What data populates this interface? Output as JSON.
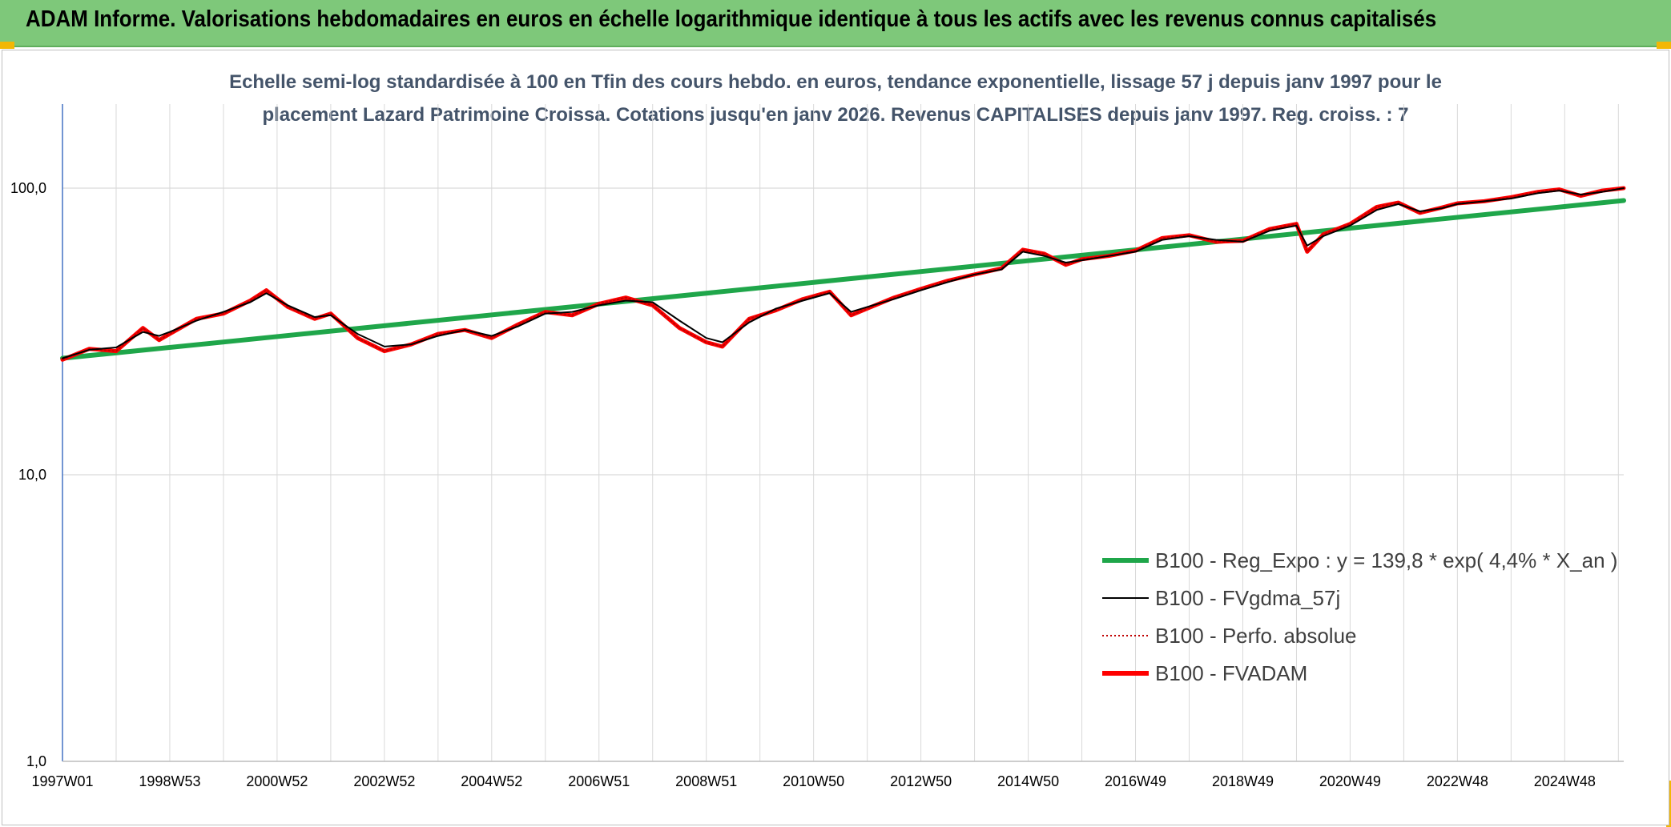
{
  "header": {
    "title": "ADAM Informe. Valorisations hebdomadaires en euros en échelle logarithmique identique à tous les actifs avec les revenus connus capitalisés"
  },
  "colors": {
    "title_bar": "#7ec87a",
    "subtitle_text": "#44546a",
    "trend": "#1fa64a",
    "smoothed": "#000000",
    "absolute": "#c00000",
    "fvadam": "#ff0000",
    "gridlines": "#d9d9d9",
    "corner_marks": "#f2b705"
  },
  "chart_data": {
    "type": "line",
    "subtitle_lines": [
      "Echelle semi-log standardisée à 100 en Tfin des cours hebdo. en euros, tendance exponentielle, lissage 57 j depuis janv 1997 pour le",
      "placement Lazard Patrimoine Croissa. Cotations jusqu'en janv 2026. Revenus CAPITALISES depuis janv 1997. Reg. croiss. : 7"
    ],
    "y_scale": "log",
    "ylim": [
      1,
      200
    ],
    "y_ticks": [
      {
        "value": 100,
        "label": "100,0"
      },
      {
        "value": 10,
        "label": "10,0"
      },
      {
        "value": 1,
        "label": "1,0"
      }
    ],
    "xlim": [
      1997.0,
      2026.1
    ],
    "x_ticks": [
      {
        "year": 1997.0,
        "label": "1997W01"
      },
      {
        "year": 1999.0,
        "label": "1998W53"
      },
      {
        "year": 2001.0,
        "label": "2000W52"
      },
      {
        "year": 2003.0,
        "label": "2002W52"
      },
      {
        "year": 2005.0,
        "label": "2004W52"
      },
      {
        "year": 2007.0,
        "label": "2006W51"
      },
      {
        "year": 2009.0,
        "label": "2008W51"
      },
      {
        "year": 2011.0,
        "label": "2010W50"
      },
      {
        "year": 2013.0,
        "label": "2012W50"
      },
      {
        "year": 2015.0,
        "label": "2014W50"
      },
      {
        "year": 2017.0,
        "label": "2016W49"
      },
      {
        "year": 2019.0,
        "label": "2018W49"
      },
      {
        "year": 2021.0,
        "label": "2020W49"
      },
      {
        "year": 2023.0,
        "label": "2022W48"
      },
      {
        "year": 2025.0,
        "label": "2024W48"
      }
    ],
    "grid": true,
    "legend_position": "bottom-right",
    "series": [
      {
        "name": "B100 - Reg_Expo : y = 139,8 * exp( 4,4% *  X_an )",
        "key": "trend",
        "style": "thick-solid",
        "x": [
          1997.0,
          2026.1
        ],
        "y": [
          25.5,
          90.5
        ]
      },
      {
        "name": "B100 - FVgdma_57j",
        "key": "smoothed",
        "style": "thin-solid",
        "x": [
          1997.0,
          1997.5,
          1998.0,
          1998.5,
          1998.8,
          1999.0,
          1999.5,
          2000.0,
          2000.5,
          2000.8,
          2001.2,
          2001.7,
          2002.0,
          2002.5,
          2003.0,
          2003.5,
          2004.0,
          2004.5,
          2005.0,
          2005.5,
          2006.0,
          2006.5,
          2007.0,
          2007.5,
          2008.0,
          2008.5,
          2009.0,
          2009.3,
          2009.8,
          2010.3,
          2010.8,
          2011.3,
          2011.7,
          2012.0,
          2012.5,
          2013.0,
          2013.5,
          2014.0,
          2014.5,
          2014.9,
          2015.3,
          2015.7,
          2016.0,
          2016.5,
          2017.0,
          2017.5,
          2018.0,
          2018.5,
          2019.0,
          2019.5,
          2020.0,
          2020.2,
          2020.5,
          2021.0,
          2021.5,
          2021.9,
          2022.3,
          2022.7,
          2023.0,
          2023.5,
          2024.0,
          2024.5,
          2024.9,
          2025.3,
          2025.7,
          2026.1
        ],
        "y": [
          25.5,
          27.3,
          27.8,
          31.5,
          30.5,
          31.5,
          34.5,
          37.0,
          40.0,
          43.0,
          39.0,
          35.5,
          36.0,
          31.0,
          28.0,
          28.5,
          30.5,
          32.0,
          30.5,
          33.0,
          36.5,
          37.0,
          39.0,
          40.5,
          40.0,
          34.5,
          30.0,
          29.0,
          34.0,
          38.0,
          40.5,
          43.0,
          37.0,
          38.5,
          41.0,
          44.0,
          47.0,
          50.0,
          52.0,
          60.0,
          58.0,
          55.0,
          56.0,
          58.0,
          60.0,
          66.0,
          68.0,
          66.0,
          65.0,
          71.0,
          74.0,
          63.0,
          68.0,
          74.0,
          84.0,
          88.0,
          83.0,
          85.0,
          88.0,
          90.0,
          92.0,
          96.0,
          98.0,
          95.0,
          97.0,
          100.0
        ]
      },
      {
        "name": "B100 - Perfo. absolue",
        "key": "absolute",
        "style": "dotted",
        "x": [
          1997.0,
          1997.5,
          1998.0,
          1998.5,
          1998.8,
          1999.0,
          1999.5,
          2000.0,
          2000.5,
          2000.8,
          2001.2,
          2001.7,
          2002.0,
          2002.5,
          2003.0,
          2003.5,
          2004.0,
          2004.5,
          2005.0,
          2005.5,
          2006.0,
          2006.5,
          2007.0,
          2007.5,
          2008.0,
          2008.5,
          2009.0,
          2009.3,
          2009.8,
          2010.3,
          2010.8,
          2011.3,
          2011.7,
          2012.0,
          2012.5,
          2013.0,
          2013.5,
          2014.0,
          2014.5,
          2014.9,
          2015.3,
          2015.7,
          2016.0,
          2016.5,
          2017.0,
          2017.5,
          2018.0,
          2018.5,
          2019.0,
          2019.5,
          2020.0,
          2020.2,
          2020.5,
          2021.0,
          2021.5,
          2021.9,
          2022.3,
          2022.7,
          2023.0,
          2023.5,
          2024.0,
          2024.5,
          2024.9,
          2025.3,
          2025.7,
          2026.1
        ],
        "y": [
          25.2,
          27.5,
          27.0,
          32.5,
          29.5,
          31.0,
          35.0,
          36.5,
          40.5,
          44.0,
          38.5,
          35.0,
          36.5,
          30.0,
          27.0,
          28.5,
          31.0,
          32.0,
          30.0,
          33.5,
          37.0,
          36.0,
          39.5,
          41.5,
          39.0,
          32.5,
          29.0,
          28.0,
          35.0,
          37.5,
          41.0,
          43.5,
          36.0,
          38.0,
          41.5,
          44.5,
          47.5,
          50.0,
          52.5,
          61.0,
          59.0,
          54.0,
          56.5,
          58.0,
          60.5,
          67.0,
          68.5,
          65.0,
          65.5,
          72.0,
          75.0,
          60.0,
          69.0,
          75.0,
          86.0,
          89.0,
          82.0,
          85.5,
          88.5,
          90.0,
          93.0,
          97.0,
          99.0,
          94.0,
          98.0,
          100.0
        ]
      },
      {
        "name": "B100 - FVADAM",
        "key": "fvadam",
        "style": "thick-solid",
        "x": [
          1997.0,
          1997.5,
          1998.0,
          1998.5,
          1998.8,
          1999.0,
          1999.5,
          2000.0,
          2000.5,
          2000.8,
          2001.2,
          2001.7,
          2002.0,
          2002.5,
          2003.0,
          2003.5,
          2004.0,
          2004.5,
          2005.0,
          2005.5,
          2006.0,
          2006.5,
          2007.0,
          2007.5,
          2008.0,
          2008.5,
          2009.0,
          2009.3,
          2009.8,
          2010.3,
          2010.8,
          2011.3,
          2011.7,
          2012.0,
          2012.5,
          2013.0,
          2013.5,
          2014.0,
          2014.5,
          2014.9,
          2015.3,
          2015.7,
          2016.0,
          2016.5,
          2017.0,
          2017.5,
          2018.0,
          2018.5,
          2019.0,
          2019.5,
          2020.0,
          2020.2,
          2020.5,
          2021.0,
          2021.5,
          2021.9,
          2022.3,
          2022.7,
          2023.0,
          2023.5,
          2024.0,
          2024.5,
          2024.9,
          2025.3,
          2025.7,
          2026.1
        ],
        "y": [
          25.2,
          27.5,
          27.0,
          32.5,
          29.5,
          31.0,
          35.0,
          36.5,
          40.5,
          44.0,
          38.5,
          35.0,
          36.5,
          30.0,
          27.0,
          28.5,
          31.0,
          32.0,
          30.0,
          33.5,
          37.0,
          36.0,
          39.5,
          41.5,
          39.0,
          32.5,
          29.0,
          28.0,
          35.0,
          37.5,
          41.0,
          43.5,
          36.0,
          38.0,
          41.5,
          44.5,
          47.5,
          50.0,
          52.5,
          61.0,
          59.0,
          54.0,
          56.5,
          58.0,
          60.5,
          67.0,
          68.5,
          65.0,
          65.5,
          72.0,
          75.0,
          60.0,
          69.0,
          75.0,
          86.0,
          89.0,
          82.0,
          85.5,
          88.5,
          90.0,
          93.0,
          97.0,
          99.0,
          94.0,
          98.0,
          100.0
        ]
      }
    ]
  }
}
